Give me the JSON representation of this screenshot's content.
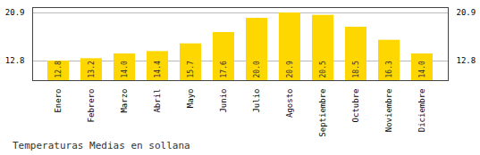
{
  "chart_data": {
    "type": "bar",
    "title": "Temperaturas Medias en sollana",
    "categories": [
      "Enero",
      "Febrero",
      "Marzo",
      "Abril",
      "Mayo",
      "Junio",
      "Julio",
      "Agosto",
      "Septiembre",
      "Octubre",
      "Noviembre",
      "Diciembre"
    ],
    "values": [
      12.8,
      13.2,
      14.0,
      14.4,
      15.7,
      17.6,
      20.0,
      20.9,
      20.5,
      18.5,
      16.3,
      14.0
    ],
    "value_labels": [
      "12.8",
      "13.2",
      "14.0",
      "14.4",
      "15.7",
      "17.6",
      "20.0",
      "20.9",
      "20.5",
      "18.5",
      "16.3",
      "14.0"
    ],
    "color": "#FFD700",
    "ylim": [
      9.5,
      21.8
    ],
    "yticks": [
      20.9,
      12.8
    ],
    "grid": true,
    "data_labels": true
  }
}
